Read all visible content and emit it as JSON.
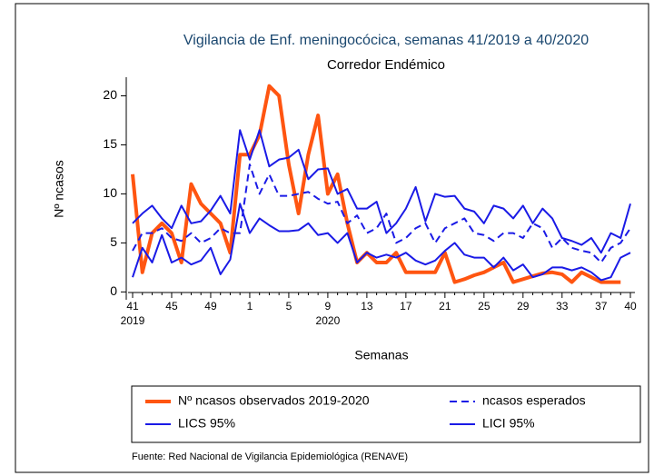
{
  "chart_data": {
    "type": "line",
    "title": "Vigilancia de Enf. meningocócica, semanas 41/2019 a 40/2020",
    "subtitle": "Corredor Endémico",
    "x_label": "Semanas",
    "y_label": "Nº ncasos",
    "footnote": "Fuente: Red Nacional de Vigilancia Epidemiológica (RENAVE)",
    "categories": [
      "41",
      null,
      null,
      null,
      "45",
      null,
      null,
      null,
      "49",
      null,
      null,
      null,
      "1",
      null,
      null,
      null,
      "5",
      null,
      null,
      null,
      "9",
      null,
      null,
      null,
      "13",
      null,
      null,
      null,
      "17",
      null,
      null,
      null,
      "21",
      null,
      null,
      null,
      "25",
      null,
      null,
      null,
      "29",
      null,
      null,
      null,
      "33",
      null,
      null,
      null,
      "37",
      null,
      null,
      "40"
    ],
    "years": [
      "2019",
      null,
      null,
      null,
      null,
      null,
      null,
      null,
      null,
      null,
      null,
      null,
      null,
      null,
      null,
      null,
      null,
      null,
      null,
      null,
      "2020",
      null,
      null,
      null,
      null,
      null,
      null,
      null,
      null,
      null,
      null,
      null,
      null,
      null,
      null,
      null,
      null,
      null,
      null,
      null,
      null,
      null,
      null,
      null,
      null,
      null,
      null,
      null,
      null,
      null,
      null,
      null
    ],
    "ylim": [
      -0.8,
      21.9
    ],
    "yticks": [
      0,
      5,
      10,
      15,
      20
    ],
    "legend": "bottom",
    "series": [
      {
        "name": "Nº ncasos observados 2019-2020",
        "color": "#ff5511",
        "width": 4,
        "dashed": false,
        "values": [
          12,
          2,
          6,
          7,
          6,
          3,
          11,
          9,
          8,
          7,
          4,
          14,
          14,
          16,
          21,
          20,
          13,
          8,
          14,
          18,
          10,
          12,
          7,
          3,
          4,
          3,
          3,
          4,
          2,
          2,
          2,
          2,
          4,
          1,
          1.3,
          1.7,
          2,
          2.5,
          3,
          1,
          1.3,
          1.6,
          1.9,
          2,
          1.8,
          1,
          2,
          1.5,
          1,
          1,
          1,
          null
        ]
      },
      {
        "name": "ncasos esperados",
        "color": "#1a1ae6",
        "width": 2,
        "dashed": true,
        "values": [
          4.2,
          6,
          6,
          6.5,
          5.5,
          5.2,
          6,
          5,
          5.5,
          6.5,
          6,
          6,
          13,
          10,
          12,
          9.8,
          9.8,
          10,
          10.2,
          9.5,
          9,
          9.2,
          7,
          7.8,
          6,
          6.5,
          8,
          5,
          5.5,
          6.5,
          7,
          5,
          6.5,
          7,
          7.5,
          6,
          5.8,
          5.2,
          6,
          6,
          5.5,
          7,
          6.5,
          4.5,
          5.5,
          4.5,
          4.2,
          4,
          3,
          4.5,
          5,
          6.5
        ]
      },
      {
        "name": "LICS 95%",
        "color": "#1a1ae6",
        "width": 2,
        "dashed": false,
        "values": [
          7,
          8,
          8.8,
          7.5,
          6.5,
          8.8,
          7,
          7.2,
          8.3,
          9.8,
          8,
          16.5,
          13.5,
          16.5,
          12.8,
          13.5,
          13.7,
          14.5,
          11.5,
          12.5,
          12.6,
          10,
          10.5,
          8.5,
          8.5,
          9.2,
          6,
          7,
          8.5,
          10.7,
          7.2,
          10,
          9.7,
          9.8,
          8.5,
          8.2,
          7,
          8.8,
          8.5,
          7.5,
          8.8,
          7,
          8.5,
          7.5,
          5.5,
          5.2,
          4.8,
          5.5,
          4,
          6,
          5.5,
          9
        ]
      },
      {
        "name": "LICI 95%",
        "color": "#1a1ae6",
        "width": 2,
        "dashed": false,
        "values": [
          1.5,
          4.5,
          3,
          5.8,
          3,
          3.5,
          2.8,
          3.2,
          4.5,
          1.8,
          3.3,
          9,
          6,
          7.5,
          6.8,
          6.2,
          6.2,
          6.3,
          7,
          5.8,
          6,
          5,
          6,
          3,
          4,
          3.5,
          3.8,
          3.5,
          4,
          3.2,
          2.8,
          3.2,
          4.2,
          5,
          3.8,
          3.5,
          3.5,
          2.5,
          3.5,
          2.2,
          2.8,
          1.5,
          1.8,
          2.5,
          2.5,
          2.2,
          2.5,
          2,
          1.2,
          1.5,
          3.5,
          4
        ]
      }
    ]
  }
}
